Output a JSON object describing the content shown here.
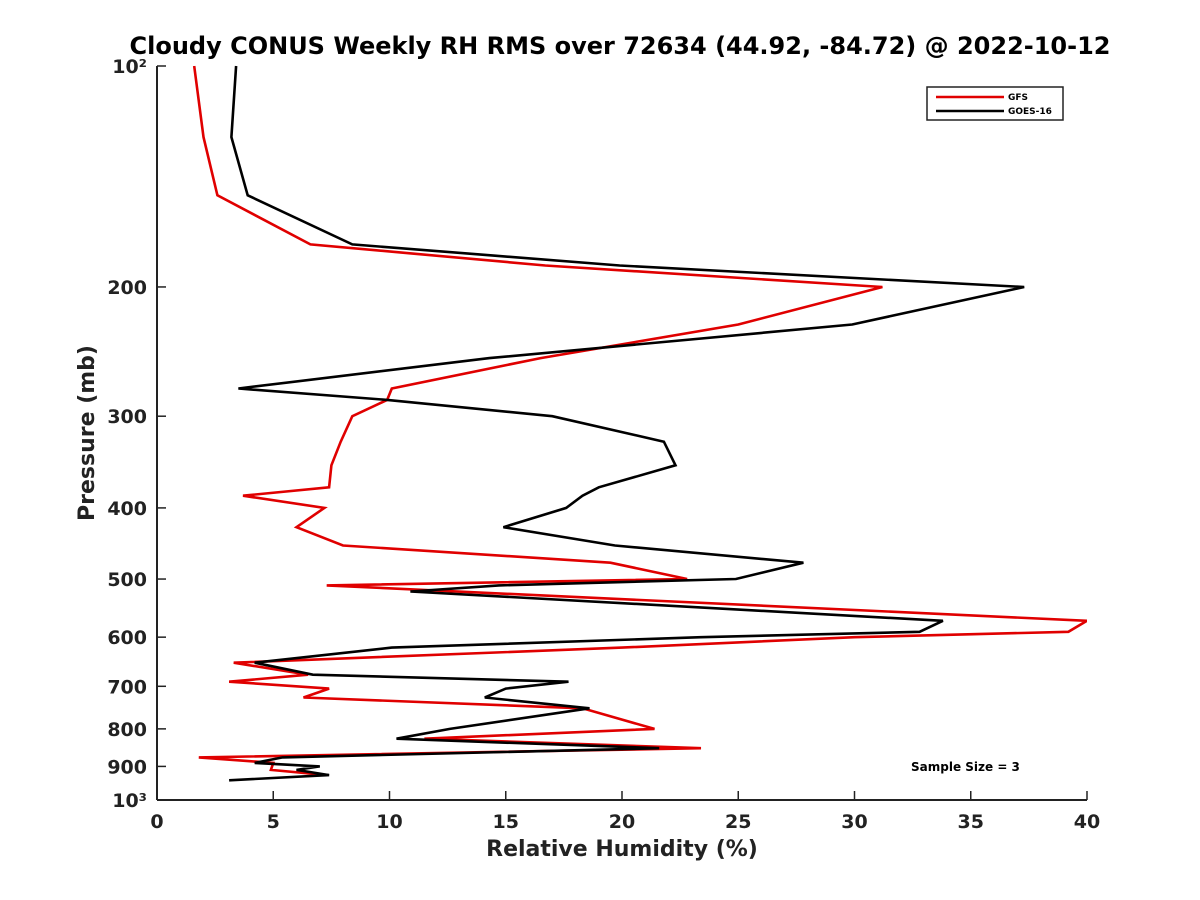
{
  "chart_data": {
    "type": "line",
    "title": "Cloudy CONUS Weekly RH RMS over 72634 (44.92, -84.72) @ 2022-10-12",
    "xlabel": "Relative Humidity (%)",
    "ylabel": "Pressure (mb)",
    "xlim": [
      0,
      40
    ],
    "ylim": [
      1000,
      100
    ],
    "y_scale": "log",
    "y_inverted": true,
    "grid": false,
    "legend_position": "top-right",
    "x_ticks": [
      0,
      5,
      10,
      15,
      20,
      25,
      30,
      35,
      40
    ],
    "x_tick_labels": [
      "0",
      "5",
      "10",
      "15",
      "20",
      "25",
      "30",
      "35",
      "40"
    ],
    "y_ticks": [
      100,
      200,
      300,
      400,
      500,
      600,
      700,
      800,
      900,
      1000
    ],
    "y_tick_labels": [
      "10²",
      "200",
      "300",
      "400",
      "500",
      "600",
      "700",
      "800",
      "900",
      "10³"
    ],
    "annotation": "Sample Size = 3",
    "series": [
      {
        "name": "GFS",
        "color": "#e00000",
        "points": [
          [
            1.6,
            100
          ],
          [
            2.0,
            125
          ],
          [
            2.6,
            150
          ],
          [
            6.6,
            175
          ],
          [
            16.7,
            187
          ],
          [
            31.2,
            200
          ],
          [
            25.0,
            225
          ],
          [
            16.5,
            250
          ],
          [
            10.1,
            275
          ],
          [
            9.9,
            285
          ],
          [
            8.4,
            300
          ],
          [
            7.9,
            325
          ],
          [
            7.5,
            350
          ],
          [
            7.4,
            375
          ],
          [
            3.7,
            385
          ],
          [
            7.2,
            400
          ],
          [
            6.0,
            425
          ],
          [
            8.0,
            450
          ],
          [
            19.5,
            475
          ],
          [
            22.8,
            500
          ],
          [
            7.3,
            510
          ],
          [
            40.0,
            570
          ],
          [
            39.2,
            590
          ],
          [
            30.0,
            600
          ],
          [
            20.0,
            620
          ],
          [
            3.3,
            650
          ],
          [
            6.5,
            675
          ],
          [
            3.1,
            690
          ],
          [
            7.4,
            705
          ],
          [
            6.3,
            725
          ],
          [
            18.3,
            750
          ],
          [
            21.4,
            800
          ],
          [
            11.5,
            825
          ],
          [
            23.4,
            850
          ],
          [
            1.8,
            875
          ],
          [
            5.0,
            890
          ],
          [
            4.9,
            910
          ],
          [
            7.3,
            925
          ]
        ]
      },
      {
        "name": "GOES-16",
        "color": "#000000",
        "points": [
          [
            3.4,
            100
          ],
          [
            3.2,
            125
          ],
          [
            3.9,
            150
          ],
          [
            8.4,
            175
          ],
          [
            19.9,
            187
          ],
          [
            37.3,
            200
          ],
          [
            29.9,
            225
          ],
          [
            14.3,
            250
          ],
          [
            3.5,
            275
          ],
          [
            9.9,
            285
          ],
          [
            17.0,
            300
          ],
          [
            21.8,
            325
          ],
          [
            22.3,
            350
          ],
          [
            19.0,
            375
          ],
          [
            18.3,
            385
          ],
          [
            17.6,
            400
          ],
          [
            14.9,
            425
          ],
          [
            19.7,
            450
          ],
          [
            27.8,
            475
          ],
          [
            24.9,
            500
          ],
          [
            14.7,
            510
          ],
          [
            10.9,
            520
          ],
          [
            33.8,
            570
          ],
          [
            32.8,
            590
          ],
          [
            23.4,
            600
          ],
          [
            10.1,
            620
          ],
          [
            4.2,
            650
          ],
          [
            6.7,
            675
          ],
          [
            17.7,
            690
          ],
          [
            15.0,
            705
          ],
          [
            14.1,
            725
          ],
          [
            18.6,
            750
          ],
          [
            12.6,
            800
          ],
          [
            10.3,
            825
          ],
          [
            21.6,
            850
          ],
          [
            5.4,
            875
          ],
          [
            4.2,
            890
          ],
          [
            7.0,
            900
          ],
          [
            6.0,
            910
          ],
          [
            7.4,
            925
          ],
          [
            3.1,
            940
          ]
        ]
      }
    ]
  }
}
